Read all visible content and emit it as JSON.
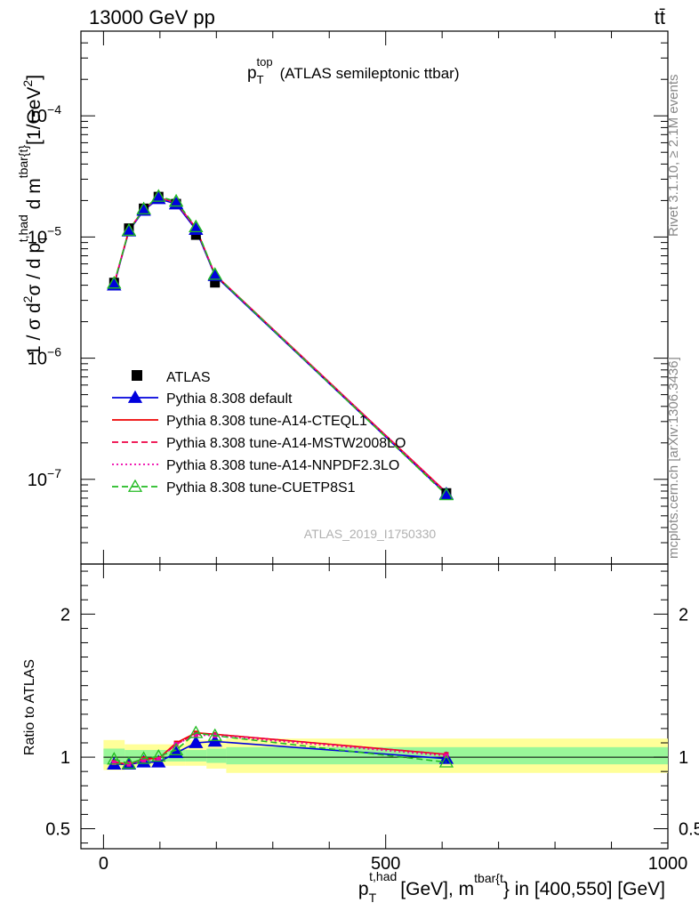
{
  "header": {
    "energy": "13000 GeV pp",
    "process": "tt̄"
  },
  "side": {
    "rivet": "Rivet 3.1.10, ≥ 2.1M events",
    "mcplots": "mcplots.cern.ch [arXiv:1306.3436]"
  },
  "watermark": "ATLAS_2019_I1750330",
  "chart_data": [
    {
      "type": "line",
      "title": "p_T^top (ATLAS semileptonic ttbar)",
      "title_parts": {
        "p": "p",
        "sub": "T",
        "sup": "top",
        "rest": "(ATLAS semileptonic ttbar)"
      },
      "ylabel": "1 / σ d²σ / d p_T^{t,had} d m^{tbar{t}} [1/GeV²]",
      "yscale": "log",
      "ylim": [
        2e-08,
        0.0005
      ],
      "yticks": [
        {
          "value": 1e-07,
          "mant": "10",
          "exp": "−7"
        },
        {
          "value": 1e-06,
          "mant": "10",
          "exp": "−6"
        },
        {
          "value": 1e-05,
          "mant": "10",
          "exp": "−5"
        },
        {
          "value": 0.0001,
          "mant": "10",
          "exp": "−4"
        }
      ],
      "xlim": [
        -40,
        1000
      ],
      "legend_position": "lower-left",
      "data": {
        "name": "ATLAS",
        "x": [
          18.75,
          45,
          71.25,
          97.5,
          128.75,
          163.75,
          197.5,
          607.5
        ],
        "y": [
          4.2e-06,
          1.18e-05,
          1.72e-05,
          2.15e-05,
          1.88e-05,
          1.04e-05,
          4.2e-06,
          7.7e-08
        ]
      },
      "series": [
        {
          "name": "Pythia 8.308 default",
          "color": "#0000dd",
          "dash": "solid",
          "marker": "triangle-filled",
          "y": [
            4e-06,
            1.12e-05,
            1.66e-05,
            2.07e-05,
            1.87e-05,
            1.15e-05,
            4.8e-06,
            7.55e-08
          ]
        },
        {
          "name": "Pythia 8.308 tune-A14-CTEQL1",
          "color": "#ee0000",
          "dash": "solid",
          "marker": "none",
          "y": [
            4.1e-06,
            1.14e-05,
            1.7e-05,
            2.12e-05,
            1.92e-05,
            1.19e-05,
            4.9e-06,
            7.8e-08
          ]
        },
        {
          "name": "Pythia 8.308 tune-A14-MSTW2008LO",
          "color": "#ee0044",
          "dash": "dashed",
          "marker": "none",
          "y": [
            4.1e-06,
            1.14e-05,
            1.69e-05,
            2.12e-05,
            1.92e-05,
            1.19e-05,
            4.9e-06,
            7.75e-08
          ]
        },
        {
          "name": "Pythia 8.308 tune-A14-NNPDF2.3LO",
          "color": "#ee00aa",
          "dash": "dotted",
          "marker": "none",
          "y": [
            4.1e-06,
            1.13e-05,
            1.69e-05,
            2.11e-05,
            1.91e-05,
            1.18e-05,
            4.9e-06,
            7.75e-08
          ]
        },
        {
          "name": "Pythia 8.308 tune-CUETP8S1",
          "color": "#22bb22",
          "dash": "dashed",
          "marker": "triangle-open",
          "y": [
            4.15e-06,
            1.13e-05,
            1.7e-05,
            2.16e-05,
            1.97e-05,
            1.21e-05,
            4.9e-06,
            7.45e-08
          ]
        }
      ]
    },
    {
      "type": "line",
      "title": "",
      "ylabel": "Ratio to ATLAS",
      "xlabel": "p_T^{t,had} [GeV], m^{tbar{t}} in [400,550] [GeV]",
      "xlabel_parts": {
        "p": "p",
        "sub": "T",
        "sup": "t,had",
        "mid": "[GeV], m",
        "sup2": "tbar{t",
        "end": "} in [400,550] [GeV]"
      },
      "ylim": [
        0.36,
        2.35
      ],
      "yticks": [
        0.5,
        1,
        2
      ],
      "ytick_labels": [
        "0.5",
        "1",
        "2"
      ],
      "xlim": [
        -40,
        1000
      ],
      "xticks": [
        0,
        500,
        1000
      ],
      "xtick_labels": [
        "0",
        "500",
        "1000"
      ],
      "bins": [
        {
          "lo": 0,
          "hi": 37.5,
          "green": [
            0.95,
            1.06
          ],
          "yellow": [
            0.91,
            1.12
          ]
        },
        {
          "lo": 37.5,
          "hi": 90,
          "green": [
            0.96,
            1.05
          ],
          "yellow": [
            0.93,
            1.09
          ]
        },
        {
          "lo": 90,
          "hi": 145,
          "green": [
            0.97,
            1.05
          ],
          "yellow": [
            0.94,
            1.09
          ]
        },
        {
          "lo": 145,
          "hi": 182.5,
          "green": [
            0.97,
            1.05
          ],
          "yellow": [
            0.94,
            1.12
          ]
        },
        {
          "lo": 182.5,
          "hi": 217.5,
          "green": [
            0.96,
            1.06
          ],
          "yellow": [
            0.92,
            1.12
          ]
        },
        {
          "lo": 217.5,
          "hi": 1000,
          "green": [
            0.95,
            1.07
          ],
          "yellow": [
            0.89,
            1.13
          ]
        }
      ],
      "x": [
        18.75,
        45,
        71.25,
        97.5,
        128.75,
        163.75,
        197.5,
        607.5
      ],
      "series": [
        {
          "name": "Pythia 8.308 default",
          "color": "#0000dd",
          "dash": "solid",
          "marker": "triangle-filled",
          "y": [
            0.95,
            0.95,
            0.965,
            0.965,
            1.03,
            1.1,
            1.11,
            0.99
          ]
        },
        {
          "name": "Pythia 8.308 tune-A14-CTEQL1",
          "color": "#ee0000",
          "dash": "solid",
          "marker": "none",
          "y": [
            0.965,
            0.95,
            0.99,
            0.99,
            1.1,
            1.17,
            1.16,
            1.02
          ]
        },
        {
          "name": "Pythia 8.308 tune-A14-MSTW2008LO",
          "color": "#ee0044",
          "dash": "dashed",
          "marker": "none",
          "y": [
            0.965,
            0.955,
            0.98,
            0.985,
            1.09,
            1.16,
            1.16,
            1.02
          ]
        },
        {
          "name": "Pythia 8.308 tune-A14-NNPDF2.3LO",
          "color": "#ee00aa",
          "dash": "dotted",
          "marker": "none",
          "y": [
            0.96,
            0.95,
            0.98,
            0.985,
            1.09,
            1.155,
            1.15,
            1.01
          ]
        },
        {
          "name": "Pythia 8.308 tune-CUETP8S1",
          "color": "#22bb22",
          "dash": "dashed",
          "marker": "triangle-open",
          "y": [
            0.985,
            0.955,
            0.99,
            1.005,
            1.05,
            1.17,
            1.15,
            0.965
          ]
        }
      ]
    }
  ]
}
